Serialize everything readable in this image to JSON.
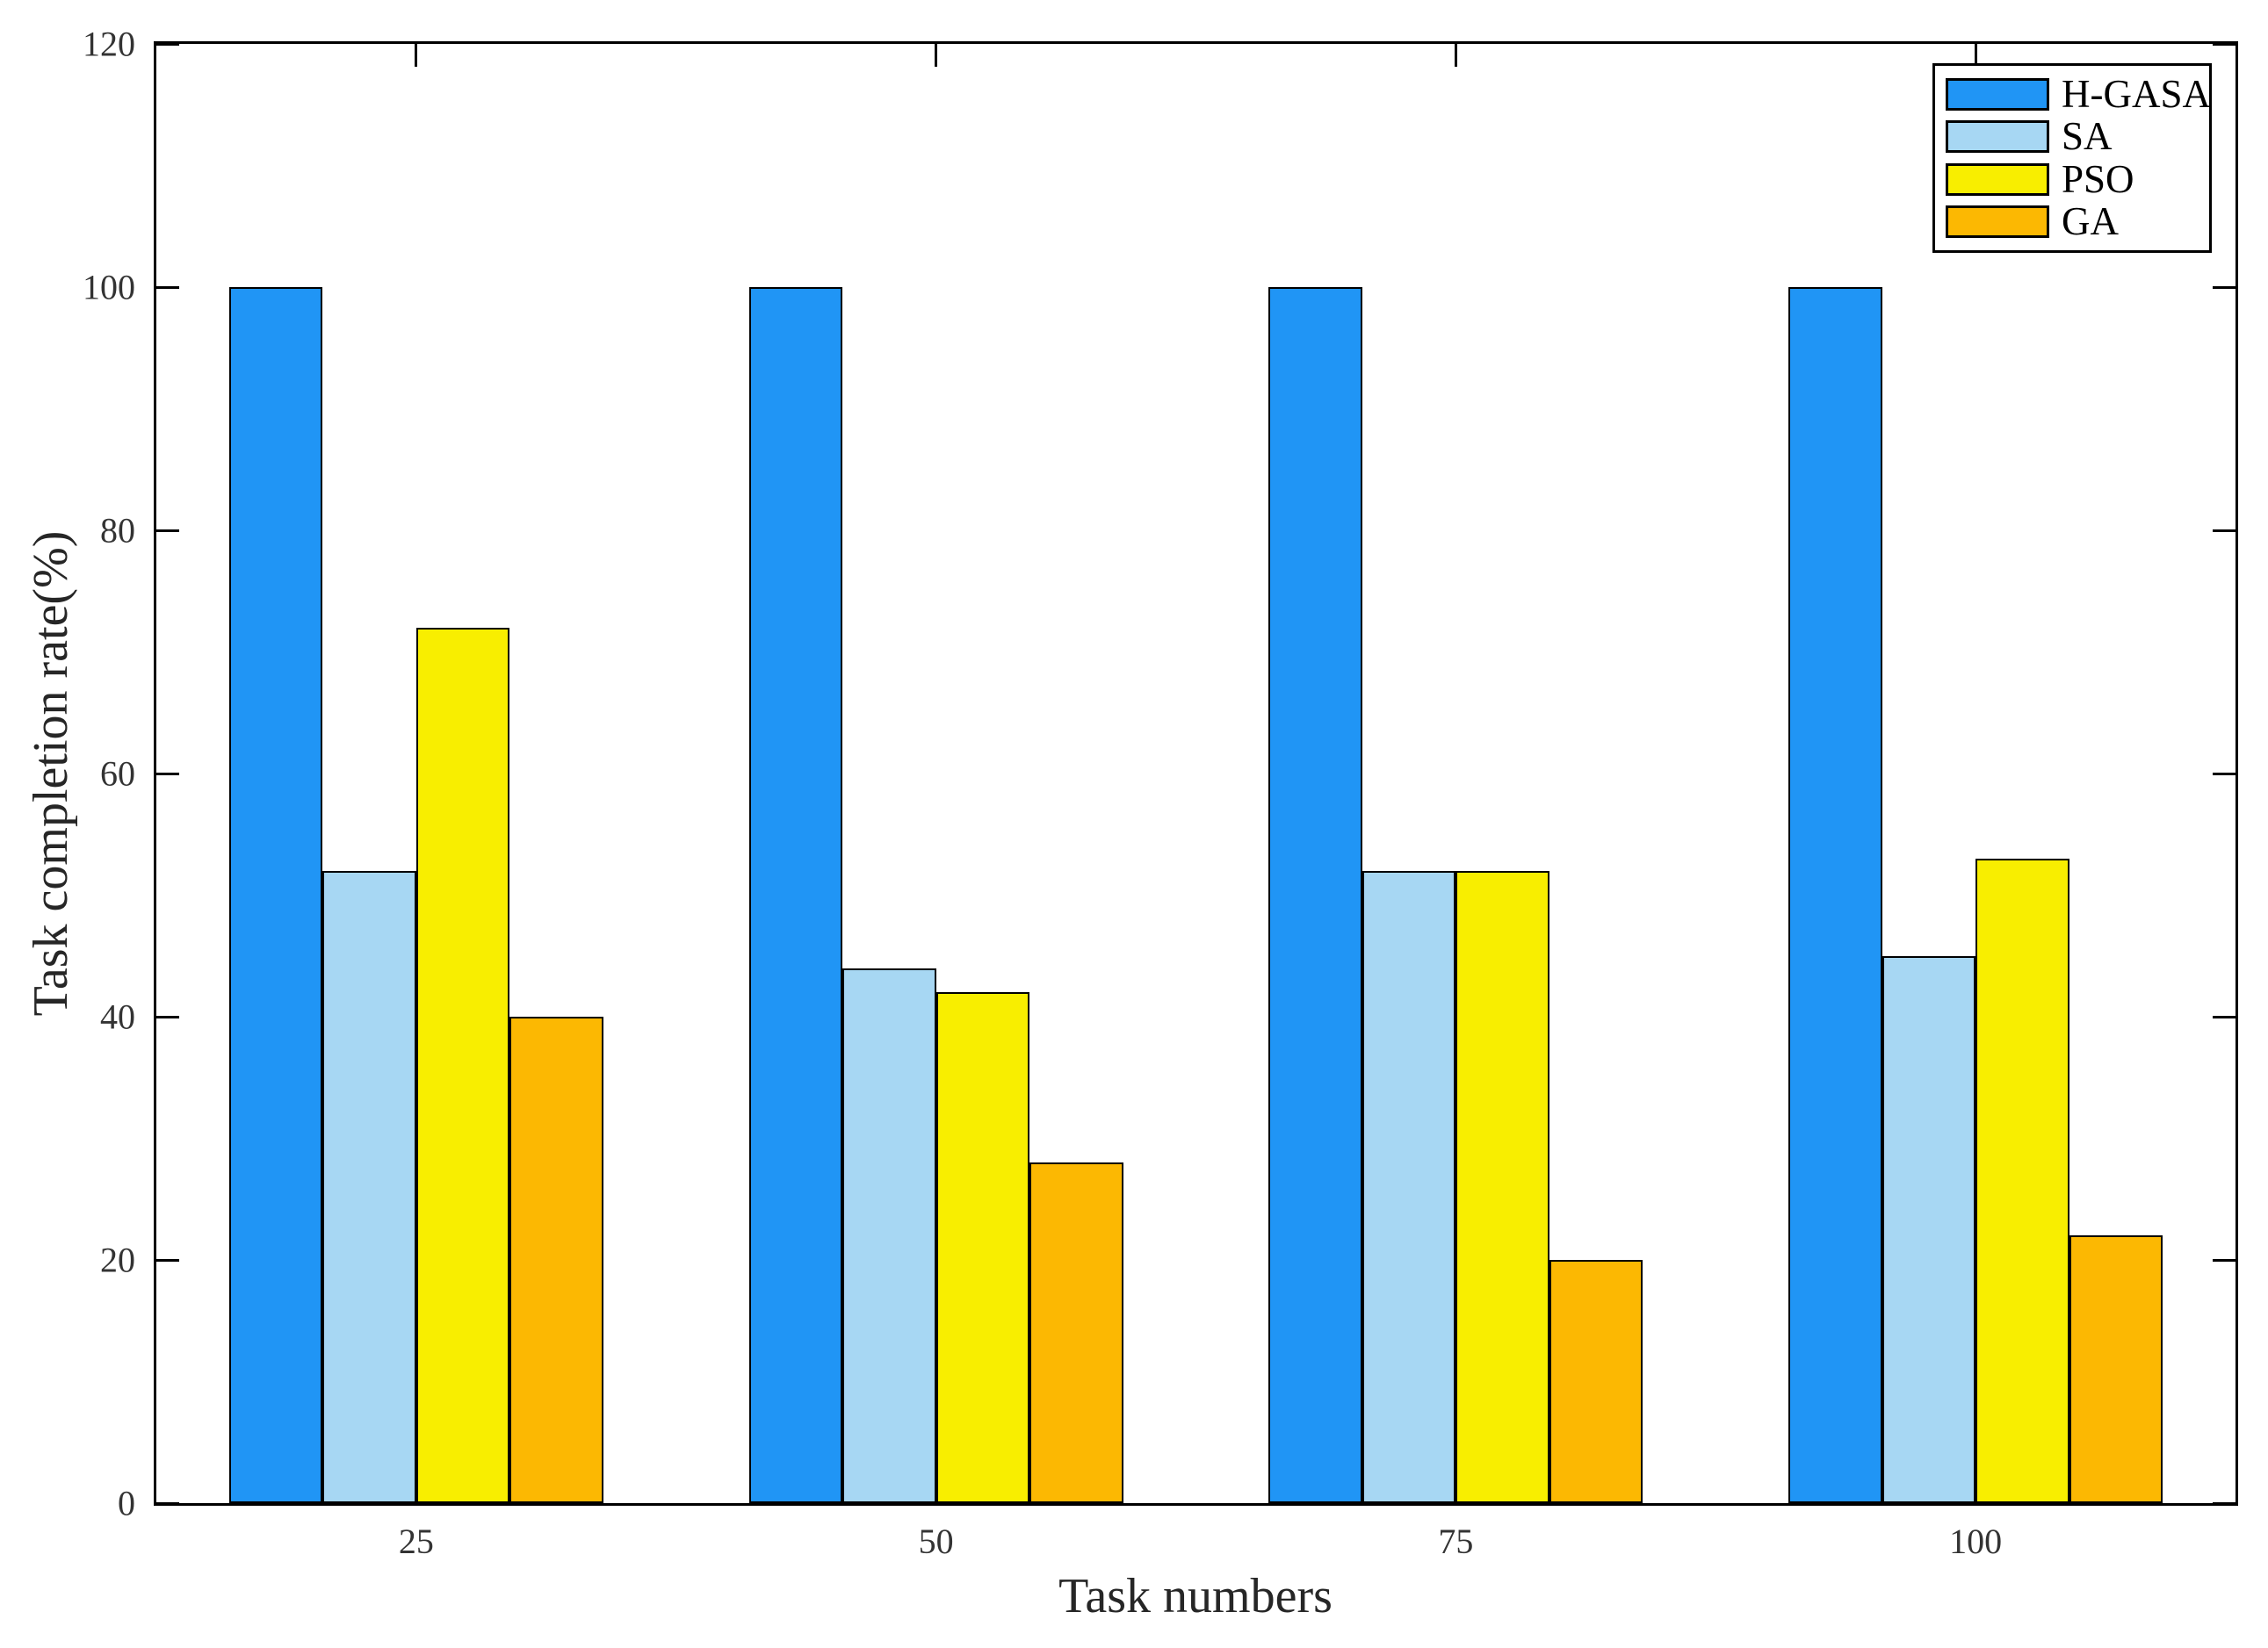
{
  "chart_data": {
    "type": "bar",
    "title": "",
    "xlabel": "Task numbers",
    "ylabel": "Task completion rate(%)",
    "categories": [
      "25",
      "50",
      "75",
      "100"
    ],
    "series": [
      {
        "name": "H-GASA",
        "color": "#2095F5",
        "values": [
          100,
          100,
          100,
          100
        ]
      },
      {
        "name": "SA",
        "color": "#A7D7F3",
        "values": [
          52,
          44,
          52,
          45
        ]
      },
      {
        "name": "PSO",
        "color": "#F8EE00",
        "values": [
          72,
          42,
          52,
          53
        ]
      },
      {
        "name": "GA",
        "color": "#FCB802",
        "values": [
          40,
          28,
          20,
          22
        ]
      }
    ],
    "ylim": [
      0,
      120
    ],
    "yticks": [
      0,
      20,
      40,
      60,
      80,
      100,
      120
    ],
    "grid": false,
    "legend_position": "top-right",
    "axis_color": "#000000",
    "bar_border_color": "#000000",
    "tick_label_color": "#333333"
  }
}
